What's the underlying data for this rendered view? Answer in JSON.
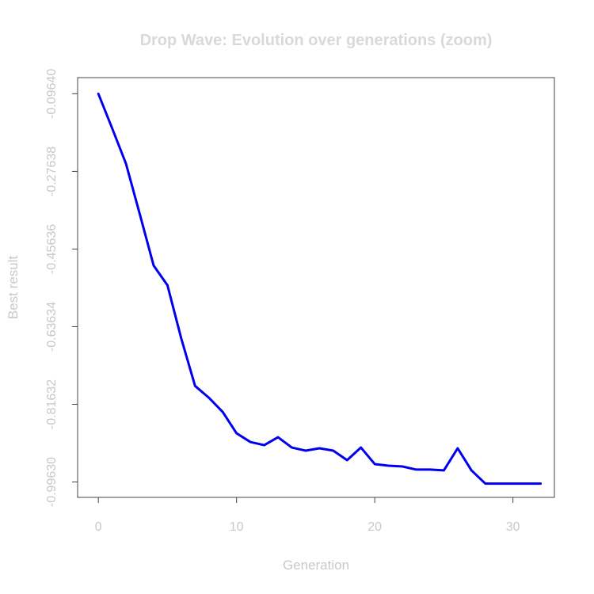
{
  "chart_data": {
    "type": "line",
    "title": "Drop Wave: Evolution over generations (zoom)",
    "xlabel": "Generation",
    "ylabel": "Best result",
    "xlim": [
      -1.5,
      33
    ],
    "ylim": [
      -1.032,
      -0.059
    ],
    "xticks": [
      0,
      10,
      20,
      30
    ],
    "xtick_labels": [
      "0",
      "10",
      "20",
      "30"
    ],
    "yticks": [
      -0.9963,
      -0.81632,
      -0.63634,
      -0.45636,
      -0.27638,
      -0.0964
    ],
    "ytick_labels": [
      "-0.99630",
      "-0.81632",
      "-0.63634",
      "-0.45636",
      "-0.27638",
      "-0.09640"
    ],
    "grid": false,
    "series": [
      {
        "color": "#0000ee",
        "x": [
          0,
          1,
          2,
          3,
          4,
          5,
          6,
          7,
          8,
          9,
          10,
          11,
          12,
          13,
          14,
          15,
          16,
          17,
          18,
          19,
          20,
          21,
          22,
          23,
          24,
          25,
          26,
          27,
          28,
          29,
          30,
          31,
          32
        ],
        "y": [
          -0.0964,
          -0.1765,
          -0.2585,
          -0.3756,
          -0.4946,
          -0.5403,
          -0.6637,
          -0.7737,
          -0.8011,
          -0.834,
          -0.8834,
          -0.9036,
          -0.9109,
          -0.8926,
          -0.9164,
          -0.9237,
          -0.9182,
          -0.9237,
          -0.9457,
          -0.9164,
          -0.9548,
          -0.9585,
          -0.9603,
          -0.9676,
          -0.9676,
          -0.9694,
          -0.9182,
          -0.9694,
          -1.0,
          -1.0,
          -1.0,
          -1.0,
          -1.0
        ]
      }
    ]
  }
}
